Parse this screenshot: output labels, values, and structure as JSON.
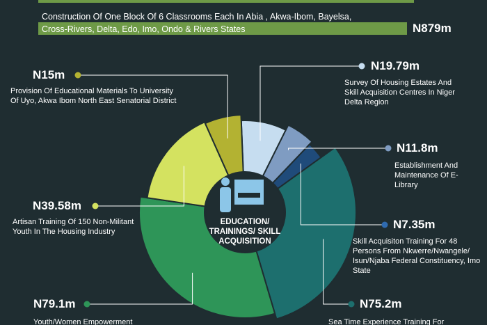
{
  "header_bar": {
    "line1": "Construction Of One Block Of 6 Classrooms Each In Abia , Akwa-Ibom, Bayelsa,",
    "line2": "Cross-Rivers, Delta, Edo, Imo, Ondo & Rivers States",
    "value_label": "N879m"
  },
  "chart_data": {
    "type": "donut",
    "center_label": "EDUCATION/ TRAININGS/ SKILL ACQUISITION",
    "categories": [
      "Survey Of Housing Estates And Skill Acquisition Centres In Niger Delta Region",
      "Establishment And Maintenance Of E-Library",
      "Skill Acquisiton Training For 48 Persons From Nkwerre/Nwangele/ Isun/Njaba Federal Constituency, Imo State",
      "Sea Time Experience Training For",
      "Youth/Women Empowerment",
      "Artisan Training Of 150 Non-Militant Youth In The Housing Industry",
      "Provision Of Educational Materials To University Of Uyo, Akwa Ibom North East Senatorial District"
    ],
    "values": [
      19.79,
      11.8,
      7.35,
      75.2,
      79.1,
      39.58,
      15
    ],
    "value_labels": [
      "N19.79m",
      "N11.8m",
      "N7.35m",
      "N75.2m",
      "N79.1m",
      "N39.58m",
      "N15m"
    ],
    "colors": [
      "#c6ddf0",
      "#7f9cc2",
      "#1f4b7a",
      "#1d6f6e",
      "#2e9558",
      "#d4e260",
      "#b3b232"
    ]
  }
}
